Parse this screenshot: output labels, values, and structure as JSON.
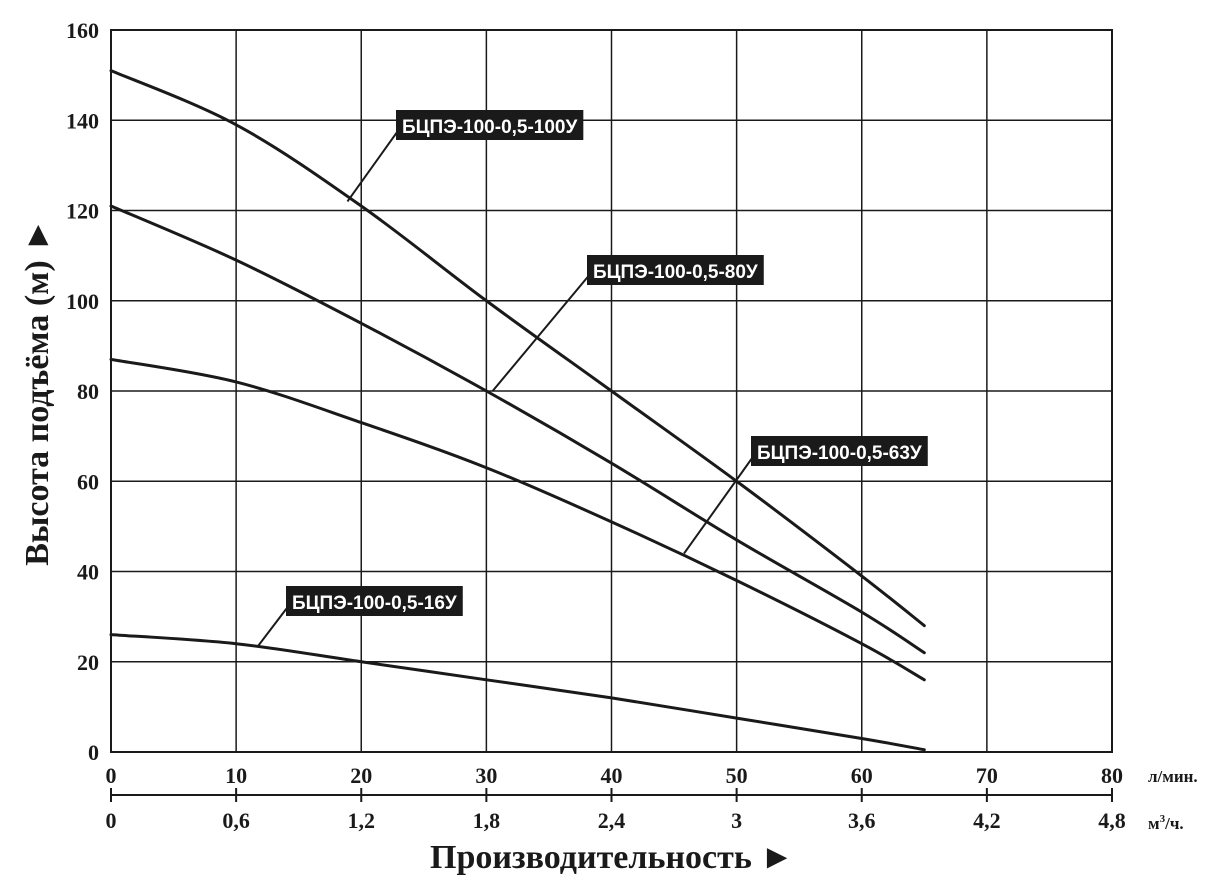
{
  "chart_data": {
    "type": "line",
    "ylabel": "Высота подъёма (м) ►",
    "xlabel": "Производительность ►",
    "x_unit_primary": "л/мин.",
    "x_unit_secondary_base": "м",
    "x_unit_secondary_sup": "3",
    "x_unit_secondary_tail": "/ч.",
    "xlim": [
      0,
      80
    ],
    "ylim": [
      0,
      160
    ],
    "grid": true,
    "x_ticks": [
      "0",
      "10",
      "20",
      "30",
      "40",
      "50",
      "60",
      "70",
      "80"
    ],
    "x_ticks_secondary": [
      "0",
      "0,6",
      "1,2",
      "1,8",
      "2,4",
      "3",
      "3,6",
      "4,2",
      "4,8"
    ],
    "y_ticks": [
      "0",
      "20",
      "40",
      "60",
      "80",
      "100",
      "120",
      "140",
      "160"
    ],
    "series": [
      {
        "name": "БЦПЭ-100-0,5-100У",
        "x": [
          0,
          10,
          20,
          30,
          40,
          50,
          60,
          65
        ],
        "y": [
          151,
          139,
          121,
          100,
          80,
          60,
          39,
          28
        ]
      },
      {
        "name": "БЦПЭ-100-0,5-80У",
        "x": [
          0,
          10,
          20,
          30,
          40,
          50,
          60,
          65
        ],
        "y": [
          121,
          109,
          95,
          80,
          64,
          47,
          31,
          22
        ]
      },
      {
        "name": "БЦПЭ-100-0,5-63У",
        "x": [
          0,
          10,
          20,
          30,
          40,
          50,
          60,
          65
        ],
        "y": [
          87,
          82,
          73,
          63,
          51,
          38,
          24,
          16
        ]
      },
      {
        "name": "БЦПЭ-100-0,5-16У",
        "x": [
          0,
          10,
          20,
          30,
          40,
          50,
          60,
          65
        ],
        "y": [
          26,
          24,
          20,
          16,
          12,
          7.5,
          3,
          0.5
        ]
      }
    ],
    "line_color": "#1a1a1a",
    "label_bg_color": "#1a1a1a",
    "label_text_color": "#ffffff",
    "grid_color": "#1a1a1a"
  }
}
